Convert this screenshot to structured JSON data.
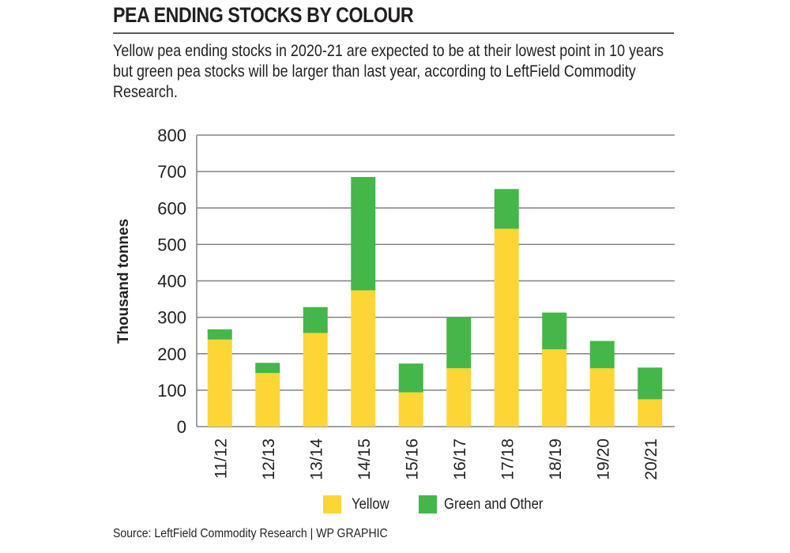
{
  "header": {
    "title": "PEA ENDING STOCKS BY COLOUR",
    "subtitle": "Yellow pea ending stocks in 2020-21 are expected to be at their lowest point in 10 years but green pea stocks will be larger than last year, according to LeftField Commodity Research."
  },
  "footer": {
    "source": "Source: LeftField Commodity Research  |  WP GRAPHIC"
  },
  "colors": {
    "yellow": "#FDD535",
    "green": "#45B649",
    "gridline": "#808285",
    "text": "#231F20"
  },
  "chart_data": {
    "type": "bar",
    "stacked": true,
    "title": "PEA ENDING STOCKS BY COLOUR",
    "xlabel": "",
    "ylabel": "Thousand tonnes",
    "ylim": [
      0,
      800
    ],
    "yticks": [
      0,
      100,
      200,
      300,
      400,
      500,
      600,
      700,
      800
    ],
    "grid": true,
    "legend_position": "bottom",
    "categories": [
      "11/12",
      "12/13",
      "13/14",
      "14/15",
      "15/16",
      "16/17",
      "17/18",
      "18/19",
      "19/20",
      "20/21"
    ],
    "series": [
      {
        "name": "Yellow",
        "color": "#FDD535",
        "values": [
          239,
          147,
          257,
          374,
          94,
          160,
          543,
          212,
          160,
          75
        ]
      },
      {
        "name": "Green and Other",
        "color": "#45B649",
        "values": [
          28,
          28,
          71,
          311,
          79,
          140,
          109,
          101,
          75,
          87
        ]
      }
    ],
    "totals": [
      267,
      175,
      328,
      685,
      173,
      300,
      652,
      313,
      235,
      162
    ]
  }
}
